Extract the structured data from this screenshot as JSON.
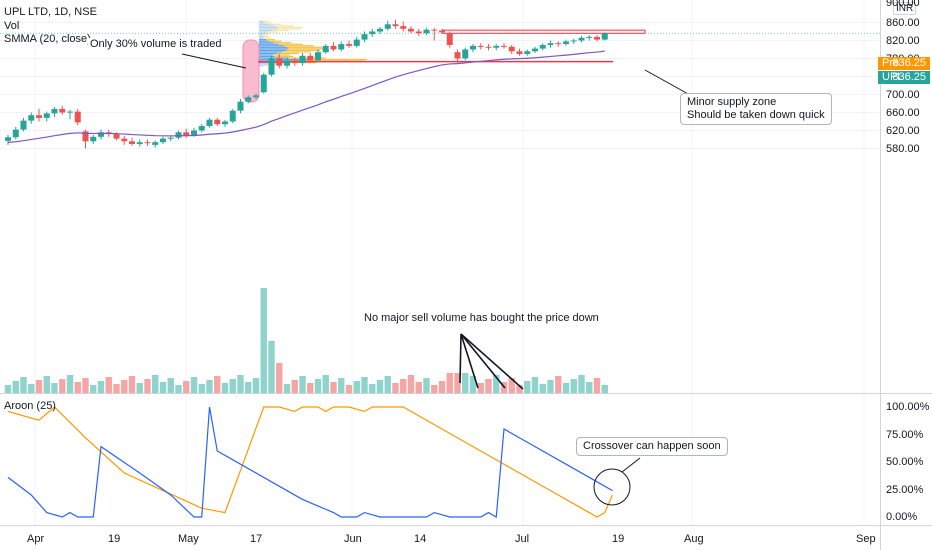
{
  "legend": {
    "symbol": "UPL LTD, 1D, NSE",
    "vol": "Vol",
    "smma": "SMMA (20, close)",
    "aroon": "Aroon (25)"
  },
  "currency": "INR",
  "price_axis": {
    "top_partial": "900.00",
    "ticks": [
      "860.00",
      "820.00",
      "780.00",
      "740.00",
      "700.00",
      "660.00",
      "620.00",
      "580.00"
    ]
  },
  "aroon_axis": {
    "ticks": [
      "100.00%",
      "75.00%",
      "50.00%",
      "25.00%",
      "0.00%"
    ]
  },
  "time_axis": {
    "ticks": [
      "Apr",
      "19",
      "May",
      "17",
      "Jun",
      "14",
      "Jul",
      "19",
      "Aug",
      "Sep"
    ]
  },
  "price_tags": {
    "pre": {
      "label": "Pre",
      "value": "836.25",
      "color": "#ff9800"
    },
    "last": {
      "label": "UPL",
      "value": "836.25",
      "color": "#26a69a"
    }
  },
  "annotations": {
    "volume_note": "Only 30% volume is traded",
    "supply_zone_line1": "Minor supply zone",
    "supply_zone_line2": "Should be taken down quick",
    "sell_volume_note": "No major sell volume has bought the price down",
    "crossover_note": "Crossover can happen soon"
  },
  "colors": {
    "up": "#26a69a",
    "down": "#ef5350",
    "smma": "#7e57c2",
    "aroon_up": "#ff9800",
    "aroon_down": "#2962ff",
    "support_line": "#f23645",
    "vol_up": "#8fd4cc",
    "vol_down": "#f5a6a4"
  },
  "chart_data": {
    "type": "candlestick",
    "title": "UPL LTD, 1D, NSE",
    "price_range": [
      552,
      903
    ],
    "volume_profile_range": [
      762,
      862
    ],
    "support_level": 773,
    "supply_zone": [
      836,
      843
    ],
    "last_price": 836.25,
    "candles": [
      {
        "date": "2021-03-24",
        "o": 597,
        "h": 610,
        "l": 588,
        "c": 605
      },
      {
        "date": "2021-03-25",
        "o": 605,
        "h": 628,
        "l": 600,
        "c": 622
      },
      {
        "date": "2021-03-26",
        "o": 622,
        "h": 648,
        "l": 618,
        "c": 642
      },
      {
        "date": "2021-03-30",
        "o": 642,
        "h": 660,
        "l": 635,
        "c": 654
      },
      {
        "date": "2021-03-31",
        "o": 654,
        "h": 668,
        "l": 640,
        "c": 648
      },
      {
        "date": "2021-04-01",
        "o": 648,
        "h": 662,
        "l": 640,
        "c": 658
      },
      {
        "date": "2021-04-05",
        "o": 658,
        "h": 672,
        "l": 650,
        "c": 668
      },
      {
        "date": "2021-04-06",
        "o": 668,
        "h": 675,
        "l": 655,
        "c": 660
      },
      {
        "date": "2021-04-07",
        "o": 660,
        "h": 666,
        "l": 645,
        "c": 662
      },
      {
        "date": "2021-04-08",
        "o": 662,
        "h": 668,
        "l": 632,
        "c": 638
      },
      {
        "date": "2021-04-09",
        "o": 618,
        "h": 622,
        "l": 580,
        "c": 596
      },
      {
        "date": "2021-04-12",
        "o": 596,
        "h": 610,
        "l": 590,
        "c": 606
      },
      {
        "date": "2021-04-13",
        "o": 606,
        "h": 622,
        "l": 600,
        "c": 616
      },
      {
        "date": "2021-04-15",
        "o": 616,
        "h": 622,
        "l": 606,
        "c": 612
      },
      {
        "date": "2021-04-16",
        "o": 612,
        "h": 616,
        "l": 598,
        "c": 602
      },
      {
        "date": "2021-04-19",
        "o": 602,
        "h": 608,
        "l": 588,
        "c": 596
      },
      {
        "date": "2021-04-20",
        "o": 596,
        "h": 604,
        "l": 586,
        "c": 590
      },
      {
        "date": "2021-04-22",
        "o": 590,
        "h": 600,
        "l": 584,
        "c": 594
      },
      {
        "date": "2021-04-23",
        "o": 594,
        "h": 600,
        "l": 586,
        "c": 592
      },
      {
        "date": "2021-04-26",
        "o": 588,
        "h": 598,
        "l": 582,
        "c": 594
      },
      {
        "date": "2021-04-27",
        "o": 594,
        "h": 606,
        "l": 590,
        "c": 602
      },
      {
        "date": "2021-04-28",
        "o": 602,
        "h": 610,
        "l": 596,
        "c": 604
      },
      {
        "date": "2021-04-29",
        "o": 604,
        "h": 620,
        "l": 600,
        "c": 616
      },
      {
        "date": "2021-04-30",
        "o": 616,
        "h": 624,
        "l": 604,
        "c": 608
      },
      {
        "date": "2021-05-03",
        "o": 608,
        "h": 626,
        "l": 606,
        "c": 620
      },
      {
        "date": "2021-05-04",
        "o": 620,
        "h": 634,
        "l": 616,
        "c": 630
      },
      {
        "date": "2021-05-05",
        "o": 630,
        "h": 648,
        "l": 626,
        "c": 644
      },
      {
        "date": "2021-05-06",
        "o": 644,
        "h": 648,
        "l": 630,
        "c": 634
      },
      {
        "date": "2021-05-07",
        "o": 634,
        "h": 644,
        "l": 628,
        "c": 640
      },
      {
        "date": "2021-05-10",
        "o": 640,
        "h": 668,
        "l": 636,
        "c": 664
      },
      {
        "date": "2021-05-11",
        "o": 664,
        "h": 690,
        "l": 658,
        "c": 684
      },
      {
        "date": "2021-05-12",
        "o": 684,
        "h": 698,
        "l": 680,
        "c": 694
      },
      {
        "date": "2021-05-14",
        "o": 694,
        "h": 702,
        "l": 690,
        "c": 698
      },
      {
        "date": "2021-05-17",
        "o": 705,
        "h": 748,
        "l": 702,
        "c": 744
      },
      {
        "date": "2021-05-18",
        "o": 744,
        "h": 786,
        "l": 740,
        "c": 780
      },
      {
        "date": "2021-05-19",
        "o": 780,
        "h": 790,
        "l": 758,
        "c": 764
      },
      {
        "date": "2021-05-20",
        "o": 764,
        "h": 782,
        "l": 758,
        "c": 776
      },
      {
        "date": "2021-05-21",
        "o": 776,
        "h": 782,
        "l": 764,
        "c": 770
      },
      {
        "date": "2021-05-24",
        "o": 770,
        "h": 792,
        "l": 764,
        "c": 786
      },
      {
        "date": "2021-05-25",
        "o": 786,
        "h": 792,
        "l": 770,
        "c": 776
      },
      {
        "date": "2021-05-26",
        "o": 776,
        "h": 800,
        "l": 772,
        "c": 794
      },
      {
        "date": "2021-05-27",
        "o": 794,
        "h": 812,
        "l": 790,
        "c": 808
      },
      {
        "date": "2021-05-28",
        "o": 808,
        "h": 816,
        "l": 796,
        "c": 800
      },
      {
        "date": "2021-05-31",
        "o": 800,
        "h": 818,
        "l": 796,
        "c": 812
      },
      {
        "date": "2021-06-01",
        "o": 812,
        "h": 820,
        "l": 804,
        "c": 808
      },
      {
        "date": "2021-06-02",
        "o": 808,
        "h": 828,
        "l": 804,
        "c": 822
      },
      {
        "date": "2021-06-03",
        "o": 822,
        "h": 840,
        "l": 816,
        "c": 834
      },
      {
        "date": "2021-06-04",
        "o": 834,
        "h": 846,
        "l": 828,
        "c": 840
      },
      {
        "date": "2021-06-07",
        "o": 840,
        "h": 850,
        "l": 834,
        "c": 846
      },
      {
        "date": "2021-06-08",
        "o": 846,
        "h": 864,
        "l": 842,
        "c": 856
      },
      {
        "date": "2021-06-09",
        "o": 856,
        "h": 866,
        "l": 846,
        "c": 852
      },
      {
        "date": "2021-06-10",
        "o": 852,
        "h": 862,
        "l": 840,
        "c": 846
      },
      {
        "date": "2021-06-11",
        "o": 846,
        "h": 852,
        "l": 836,
        "c": 840
      },
      {
        "date": "2021-06-14",
        "o": 840,
        "h": 846,
        "l": 830,
        "c": 836
      },
      {
        "date": "2021-06-15",
        "o": 836,
        "h": 848,
        "l": 832,
        "c": 844
      },
      {
        "date": "2021-06-16",
        "o": 844,
        "h": 848,
        "l": 820,
        "c": 842
      },
      {
        "date": "2021-06-17",
        "o": 842,
        "h": 846,
        "l": 836,
        "c": 838
      },
      {
        "date": "2021-06-18",
        "o": 836,
        "h": 840,
        "l": 804,
        "c": 810
      },
      {
        "date": "2021-06-21",
        "o": 794,
        "h": 800,
        "l": 770,
        "c": 780
      },
      {
        "date": "2021-06-22",
        "o": 780,
        "h": 804,
        "l": 776,
        "c": 800
      },
      {
        "date": "2021-06-23",
        "o": 800,
        "h": 812,
        "l": 794,
        "c": 808
      },
      {
        "date": "2021-06-24",
        "o": 808,
        "h": 814,
        "l": 800,
        "c": 806
      },
      {
        "date": "2021-06-25",
        "o": 806,
        "h": 812,
        "l": 798,
        "c": 804
      },
      {
        "date": "2021-06-28",
        "o": 804,
        "h": 812,
        "l": 798,
        "c": 808
      },
      {
        "date": "2021-06-29",
        "o": 808,
        "h": 814,
        "l": 802,
        "c": 806
      },
      {
        "date": "2021-06-30",
        "o": 806,
        "h": 810,
        "l": 790,
        "c": 796
      },
      {
        "date": "2021-07-01",
        "o": 796,
        "h": 802,
        "l": 786,
        "c": 790
      },
      {
        "date": "2021-07-02",
        "o": 790,
        "h": 800,
        "l": 786,
        "c": 796
      },
      {
        "date": "2021-07-05",
        "o": 796,
        "h": 806,
        "l": 792,
        "c": 802
      },
      {
        "date": "2021-07-06",
        "o": 802,
        "h": 814,
        "l": 798,
        "c": 810
      },
      {
        "date": "2021-07-07",
        "o": 810,
        "h": 820,
        "l": 804,
        "c": 814
      },
      {
        "date": "2021-07-08",
        "o": 814,
        "h": 818,
        "l": 806,
        "c": 812
      },
      {
        "date": "2021-07-09",
        "o": 812,
        "h": 822,
        "l": 808,
        "c": 818
      },
      {
        "date": "2021-07-12",
        "o": 818,
        "h": 824,
        "l": 812,
        "c": 820
      },
      {
        "date": "2021-07-13",
        "o": 820,
        "h": 830,
        "l": 816,
        "c": 826
      },
      {
        "date": "2021-07-14",
        "o": 826,
        "h": 832,
        "l": 820,
        "c": 828
      },
      {
        "date": "2021-07-15",
        "o": 828,
        "h": 832,
        "l": 818,
        "c": 822
      },
      {
        "date": "2021-07-16",
        "o": 822,
        "h": 838,
        "l": 820,
        "c": 836
      }
    ],
    "aroon_up_path": [
      [
        0,
        96
      ],
      [
        4,
        88
      ],
      [
        6,
        100
      ],
      [
        10,
        72
      ],
      [
        15,
        40
      ],
      [
        20,
        24
      ],
      [
        25,
        8
      ],
      [
        28,
        4
      ],
      [
        33,
        100
      ],
      [
        35,
        100
      ],
      [
        37,
        96
      ],
      [
        38,
        100
      ],
      [
        40,
        100
      ],
      [
        41,
        96
      ],
      [
        42,
        100
      ],
      [
        44,
        100
      ],
      [
        46,
        96
      ],
      [
        47,
        100
      ],
      [
        49,
        100
      ],
      [
        51,
        100
      ],
      [
        55,
        84
      ],
      [
        60,
        64
      ],
      [
        65,
        44
      ],
      [
        70,
        24
      ],
      [
        74,
        8
      ],
      [
        76,
        0
      ],
      [
        77,
        4
      ],
      [
        78,
        20
      ]
    ],
    "aroon_down_path": [
      [
        0,
        36
      ],
      [
        3,
        20
      ],
      [
        5,
        4
      ],
      [
        7,
        0
      ],
      [
        8,
        4
      ],
      [
        9,
        0
      ],
      [
        11,
        0
      ],
      [
        12,
        64
      ],
      [
        17,
        40
      ],
      [
        21,
        20
      ],
      [
        24,
        0
      ],
      [
        25,
        0
      ],
      [
        26,
        100
      ],
      [
        27,
        60
      ],
      [
        30,
        48
      ],
      [
        34,
        32
      ],
      [
        38,
        16
      ],
      [
        42,
        4
      ],
      [
        43,
        0
      ],
      [
        45,
        0
      ],
      [
        46,
        4
      ],
      [
        48,
        0
      ],
      [
        54,
        0
      ],
      [
        55,
        4
      ],
      [
        57,
        0
      ],
      [
        61,
        0
      ],
      [
        62,
        4
      ],
      [
        63,
        0
      ],
      [
        64,
        80
      ],
      [
        68,
        64
      ],
      [
        72,
        48
      ],
      [
        76,
        32
      ],
      [
        78,
        24
      ]
    ]
  }
}
